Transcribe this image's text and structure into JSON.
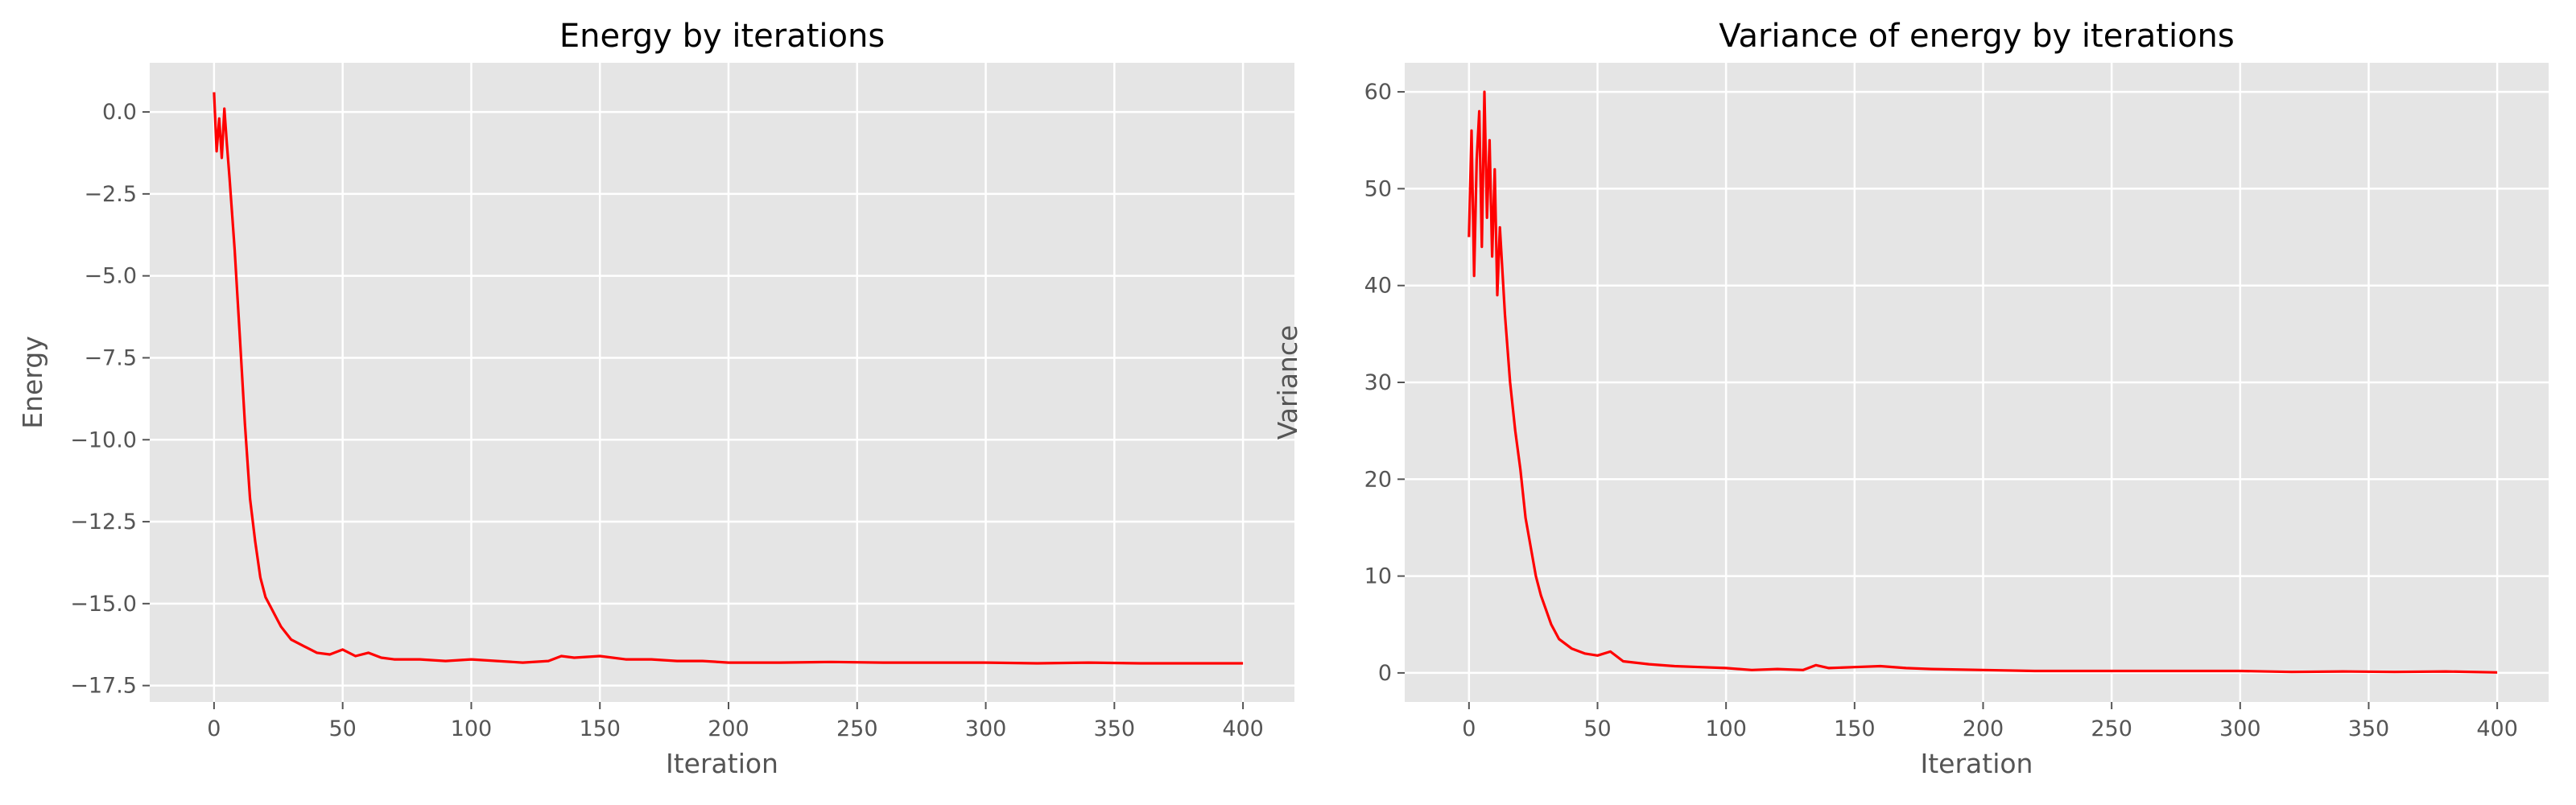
{
  "chart_data": [
    {
      "type": "line",
      "title": "Energy by iterations",
      "xlabel": "Iteration",
      "ylabel": "Energy",
      "xlim": [
        -25,
        420
      ],
      "ylim": [
        -18,
        1.5
      ],
      "xticks": [
        0,
        50,
        100,
        150,
        200,
        250,
        300,
        350,
        400
      ],
      "yticks": [
        0.0,
        -2.5,
        -5.0,
        -7.5,
        -10.0,
        -12.5,
        -15.0,
        -17.5
      ],
      "ytick_labels": [
        "0.0",
        "−2.5",
        "−5.0",
        "−7.5",
        "−10.0",
        "−12.5",
        "−15.0",
        "−17.5"
      ],
      "grid": true,
      "background": "#e5e5e5",
      "series": [
        {
          "color": "#ff0000",
          "x": [
            0,
            1,
            2,
            3,
            4,
            5,
            6,
            8,
            10,
            12,
            14,
            16,
            18,
            20,
            22,
            24,
            26,
            28,
            30,
            35,
            40,
            45,
            50,
            55,
            60,
            65,
            70,
            80,
            90,
            100,
            110,
            120,
            130,
            135,
            140,
            150,
            160,
            170,
            180,
            190,
            200,
            220,
            240,
            260,
            280,
            300,
            320,
            340,
            360,
            380,
            400
          ],
          "y": [
            0.6,
            -1.2,
            -0.2,
            -1.4,
            0.1,
            -1.0,
            -2.0,
            -4.2,
            -6.8,
            -9.5,
            -11.8,
            -13.1,
            -14.2,
            -14.8,
            -15.1,
            -15.4,
            -15.7,
            -15.9,
            -16.1,
            -16.3,
            -16.5,
            -16.55,
            -16.4,
            -16.6,
            -16.5,
            -16.65,
            -16.7,
            -16.7,
            -16.75,
            -16.7,
            -16.75,
            -16.8,
            -16.75,
            -16.6,
            -16.65,
            -16.6,
            -16.7,
            -16.7,
            -16.75,
            -16.75,
            -16.8,
            -16.8,
            -16.78,
            -16.8,
            -16.8,
            -16.8,
            -16.82,
            -16.8,
            -16.82,
            -16.82,
            -16.82
          ]
        }
      ]
    },
    {
      "type": "line",
      "title": "Variance of energy by iterations",
      "xlabel": "Iteration",
      "ylabel": "Variance",
      "xlim": [
        -25,
        420
      ],
      "ylim": [
        -3,
        63
      ],
      "xticks": [
        0,
        50,
        100,
        150,
        200,
        250,
        300,
        350,
        400
      ],
      "yticks": [
        0,
        10,
        20,
        30,
        40,
        50,
        60
      ],
      "ytick_labels": [
        "0",
        "10",
        "20",
        "30",
        "40",
        "50",
        "60"
      ],
      "grid": true,
      "background": "#e5e5e5",
      "series": [
        {
          "color": "#ff0000",
          "x": [
            0,
            1,
            2,
            3,
            4,
            5,
            6,
            7,
            8,
            9,
            10,
            11,
            12,
            14,
            16,
            18,
            20,
            22,
            24,
            26,
            28,
            30,
            32,
            35,
            40,
            45,
            50,
            55,
            60,
            70,
            80,
            90,
            100,
            110,
            120,
            130,
            135,
            140,
            150,
            160,
            170,
            180,
            200,
            220,
            240,
            260,
            280,
            300,
            320,
            340,
            360,
            380,
            400
          ],
          "y": [
            45,
            56,
            41,
            53,
            58,
            44,
            60,
            47,
            55,
            43,
            52,
            39,
            46,
            37,
            30,
            25,
            21,
            16,
            13,
            10,
            8,
            6.5,
            5,
            3.5,
            2.5,
            2,
            1.8,
            2.2,
            1.2,
            0.9,
            0.7,
            0.6,
            0.5,
            0.3,
            0.4,
            0.3,
            0.8,
            0.5,
            0.6,
            0.7,
            0.5,
            0.4,
            0.3,
            0.2,
            0.2,
            0.2,
            0.2,
            0.2,
            0.1,
            0.15,
            0.1,
            0.15,
            0.05
          ]
        }
      ]
    }
  ]
}
